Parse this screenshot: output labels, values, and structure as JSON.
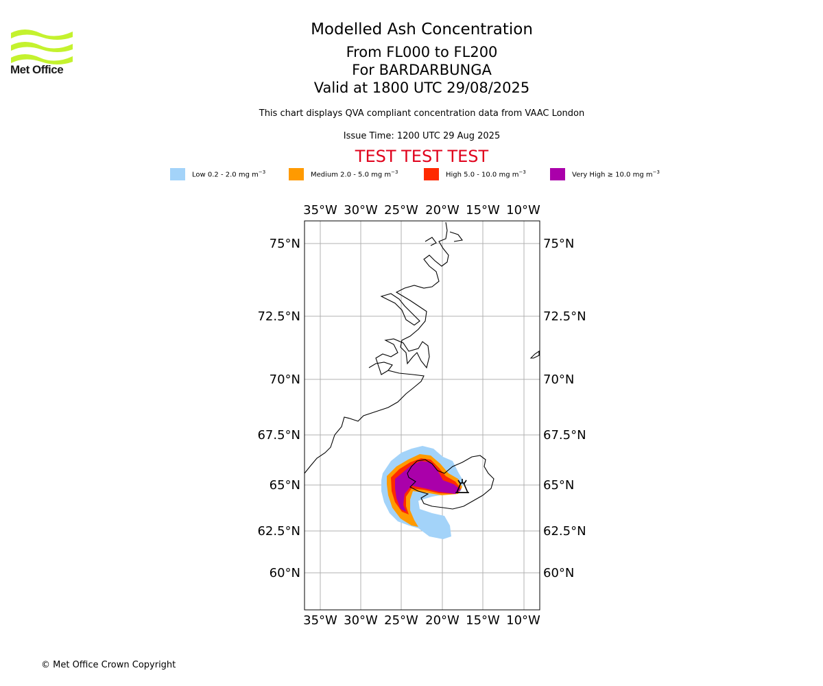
{
  "logo": {
    "text": "Met Office"
  },
  "title": {
    "line1": "Modelled Ash Concentration",
    "line2": "From FL000 to FL200",
    "line3": "For BARDARBUNGA",
    "line4": "Valid at 1800 UTC 29/08/2025"
  },
  "subtitle": "This chart displays QVA compliant concentration data from VAAC London",
  "issue_time": "Issue Time: 1200 UTC 29 Aug 2025",
  "test_banner": "TEST TEST TEST",
  "legend": [
    {
      "label": "Low 0.2 - 2.0 mg m",
      "color": "#a3d3f9"
    },
    {
      "label": "Medium 2.0 - 5.0 mg m",
      "color": "#ff9a00"
    },
    {
      "label": "High 5.0 - 10.0 mg m",
      "color": "#ff2a00"
    },
    {
      "label": "Very High ≥ 10.0 mg m",
      "color": "#aa00aa"
    }
  ],
  "legend_unit_exponent": "−3",
  "map": {
    "lon_labels": [
      "35°W",
      "30°W",
      "25°W",
      "20°W",
      "15°W",
      "10°W"
    ],
    "lat_labels": [
      "75°N",
      "72.5°N",
      "70°N",
      "67.5°N",
      "65°N",
      "62.5°N",
      "60°N"
    ],
    "volcano": "BARDARBUNGA"
  },
  "copyright": "© Met Office Crown Copyright"
}
